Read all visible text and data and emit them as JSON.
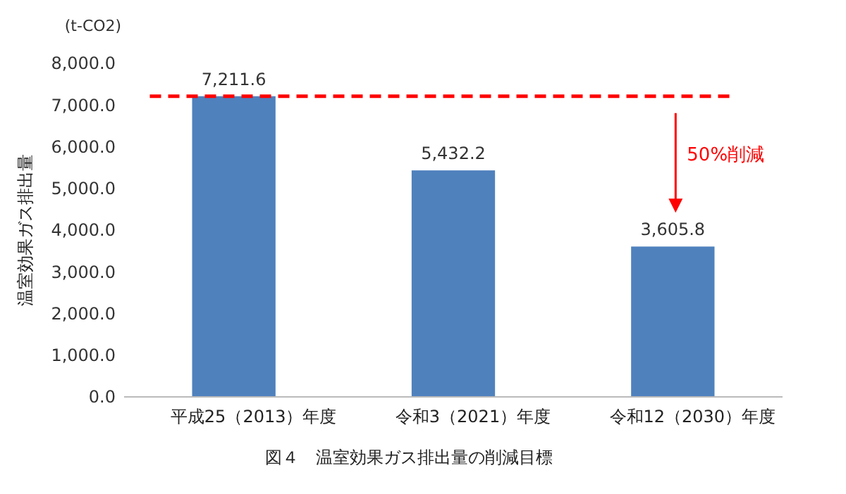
{
  "chart_data": {
    "type": "bar",
    "title": "図４　温室効果ガス排出量の削減目標",
    "ylabel": "温室効果ガス排出量",
    "categories": [
      "平成25（2013）年度",
      "令和3（2021）年度",
      "令和12（2030）年度"
    ],
    "values": [
      7211.6,
      5432.2,
      3605.8
    ],
    "color": "#4f81bd",
    "value_labels": [
      "7,211.6",
      "5,432.2",
      "3,605.8"
    ],
    "ylim": [
      0,
      8000
    ],
    "yticks": [
      {
        "value": 0,
        "label": "0.0"
      },
      {
        "value": 1000,
        "label": "1,000.0"
      },
      {
        "value": 2000,
        "label": "2,000.0"
      },
      {
        "value": 3000,
        "label": "3,000.0"
      },
      {
        "value": 4000,
        "label": "4,000.0"
      },
      {
        "value": 5000,
        "label": "5,000.0"
      },
      {
        "value": 6000,
        "label": "6,000.0"
      },
      {
        "value": 7000,
        "label": "7,000.0"
      },
      {
        "value": 8000,
        "label": "8,000.0"
      }
    ],
    "ref_lines": [
      {
        "axis": "y",
        "value": 7211.6,
        "color": "#ff0000",
        "line_style": "dashed"
      }
    ],
    "annotations": [
      "(t-CO2)",
      "50%削減"
    ],
    "grid": false
  }
}
